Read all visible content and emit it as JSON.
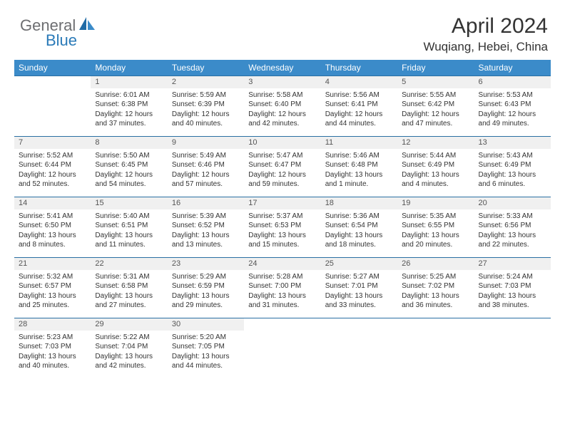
{
  "logo": {
    "text1": "General",
    "text2": "Blue"
  },
  "header": {
    "month": "April 2024",
    "location": "Wuqiang, Hebei, China"
  },
  "colors": {
    "header_bg": "#3b8bc9",
    "header_text": "#ffffff",
    "daynum_bg": "#f0f0f0",
    "border": "#2a6fa3",
    "text": "#333333",
    "logo_gray": "#6d6e71",
    "logo_blue": "#2a7ab8"
  },
  "weekdays": [
    "Sunday",
    "Monday",
    "Tuesday",
    "Wednesday",
    "Thursday",
    "Friday",
    "Saturday"
  ],
  "weeks": [
    [
      null,
      {
        "n": "1",
        "sr": "6:01 AM",
        "ss": "6:38 PM",
        "dl": "12 hours and 37 minutes."
      },
      {
        "n": "2",
        "sr": "5:59 AM",
        "ss": "6:39 PM",
        "dl": "12 hours and 40 minutes."
      },
      {
        "n": "3",
        "sr": "5:58 AM",
        "ss": "6:40 PM",
        "dl": "12 hours and 42 minutes."
      },
      {
        "n": "4",
        "sr": "5:56 AM",
        "ss": "6:41 PM",
        "dl": "12 hours and 44 minutes."
      },
      {
        "n": "5",
        "sr": "5:55 AM",
        "ss": "6:42 PM",
        "dl": "12 hours and 47 minutes."
      },
      {
        "n": "6",
        "sr": "5:53 AM",
        "ss": "6:43 PM",
        "dl": "12 hours and 49 minutes."
      }
    ],
    [
      {
        "n": "7",
        "sr": "5:52 AM",
        "ss": "6:44 PM",
        "dl": "12 hours and 52 minutes."
      },
      {
        "n": "8",
        "sr": "5:50 AM",
        "ss": "6:45 PM",
        "dl": "12 hours and 54 minutes."
      },
      {
        "n": "9",
        "sr": "5:49 AM",
        "ss": "6:46 PM",
        "dl": "12 hours and 57 minutes."
      },
      {
        "n": "10",
        "sr": "5:47 AM",
        "ss": "6:47 PM",
        "dl": "12 hours and 59 minutes."
      },
      {
        "n": "11",
        "sr": "5:46 AM",
        "ss": "6:48 PM",
        "dl": "13 hours and 1 minute."
      },
      {
        "n": "12",
        "sr": "5:44 AM",
        "ss": "6:49 PM",
        "dl": "13 hours and 4 minutes."
      },
      {
        "n": "13",
        "sr": "5:43 AM",
        "ss": "6:49 PM",
        "dl": "13 hours and 6 minutes."
      }
    ],
    [
      {
        "n": "14",
        "sr": "5:41 AM",
        "ss": "6:50 PM",
        "dl": "13 hours and 8 minutes."
      },
      {
        "n": "15",
        "sr": "5:40 AM",
        "ss": "6:51 PM",
        "dl": "13 hours and 11 minutes."
      },
      {
        "n": "16",
        "sr": "5:39 AM",
        "ss": "6:52 PM",
        "dl": "13 hours and 13 minutes."
      },
      {
        "n": "17",
        "sr": "5:37 AM",
        "ss": "6:53 PM",
        "dl": "13 hours and 15 minutes."
      },
      {
        "n": "18",
        "sr": "5:36 AM",
        "ss": "6:54 PM",
        "dl": "13 hours and 18 minutes."
      },
      {
        "n": "19",
        "sr": "5:35 AM",
        "ss": "6:55 PM",
        "dl": "13 hours and 20 minutes."
      },
      {
        "n": "20",
        "sr": "5:33 AM",
        "ss": "6:56 PM",
        "dl": "13 hours and 22 minutes."
      }
    ],
    [
      {
        "n": "21",
        "sr": "5:32 AM",
        "ss": "6:57 PM",
        "dl": "13 hours and 25 minutes."
      },
      {
        "n": "22",
        "sr": "5:31 AM",
        "ss": "6:58 PM",
        "dl": "13 hours and 27 minutes."
      },
      {
        "n": "23",
        "sr": "5:29 AM",
        "ss": "6:59 PM",
        "dl": "13 hours and 29 minutes."
      },
      {
        "n": "24",
        "sr": "5:28 AM",
        "ss": "7:00 PM",
        "dl": "13 hours and 31 minutes."
      },
      {
        "n": "25",
        "sr": "5:27 AM",
        "ss": "7:01 PM",
        "dl": "13 hours and 33 minutes."
      },
      {
        "n": "26",
        "sr": "5:25 AM",
        "ss": "7:02 PM",
        "dl": "13 hours and 36 minutes."
      },
      {
        "n": "27",
        "sr": "5:24 AM",
        "ss": "7:03 PM",
        "dl": "13 hours and 38 minutes."
      }
    ],
    [
      {
        "n": "28",
        "sr": "5:23 AM",
        "ss": "7:03 PM",
        "dl": "13 hours and 40 minutes."
      },
      {
        "n": "29",
        "sr": "5:22 AM",
        "ss": "7:04 PM",
        "dl": "13 hours and 42 minutes."
      },
      {
        "n": "30",
        "sr": "5:20 AM",
        "ss": "7:05 PM",
        "dl": "13 hours and 44 minutes."
      },
      null,
      null,
      null,
      null
    ]
  ],
  "labels": {
    "sunrise": "Sunrise: ",
    "sunset": "Sunset: ",
    "daylight": "Daylight: "
  }
}
